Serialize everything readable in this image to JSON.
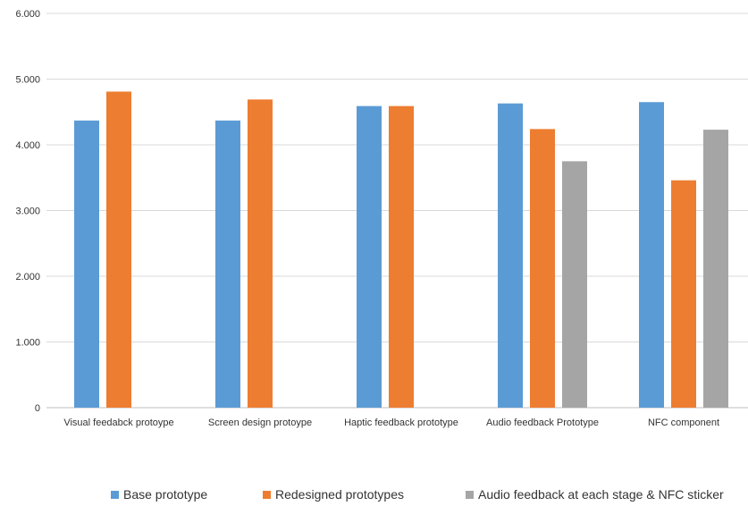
{
  "chart_data": {
    "type": "bar",
    "title": "",
    "xlabel": "",
    "ylabel": "",
    "ylim": [
      0,
      6
    ],
    "yticks": [
      "0",
      "1.000",
      "2.000",
      "3.000",
      "4.000",
      "5.000",
      "6.000"
    ],
    "categories": [
      "Visual feedabck protoype",
      "Screen design protoype",
      "Haptic feedback prototype",
      "Audio feedback Prototype",
      "NFC component"
    ],
    "series": [
      {
        "name": "Base prototype",
        "color": "#5b9bd5",
        "values": [
          4.37,
          4.37,
          4.59,
          4.63,
          4.65
        ]
      },
      {
        "name": "Redesigned prototypes",
        "color": "#ed7d31",
        "values": [
          4.81,
          4.69,
          4.59,
          4.24,
          3.46
        ]
      },
      {
        "name": "Audio feedback at each stage & NFC sticker",
        "color": "#a5a5a5",
        "values": [
          null,
          null,
          null,
          3.75,
          4.23
        ]
      }
    ],
    "grid": true,
    "legend": "bottom"
  }
}
